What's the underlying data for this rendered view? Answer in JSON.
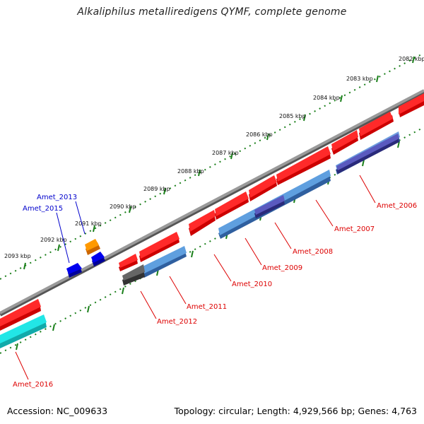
{
  "title": "Alkaliphilus metalliredigens QYMF, complete genome",
  "footer": {
    "accession": "Accession: NC_009633",
    "topology": "Topology: circular; Length: 4,929,566 bp; Genes: 4,763"
  },
  "colors": {
    "backbone": "#8a8a8a",
    "ruler_dots": "#1a7f1a",
    "red_feature": "#ee1111",
    "blue_feature": "#3f7fbf",
    "navy_feature": "#3b3b8f",
    "gray_feature": "#555555",
    "cyan_feature": "#22e6e6",
    "orange_feature": "#ff9900",
    "dark_blue_feature": "#0000dd",
    "label_red": "#dd0000",
    "label_blue": "#0000cc"
  },
  "scale_labels": [
    "2082 kbp",
    "2083 kbp",
    "2084 kbp",
    "2085 kbp",
    "2086 kbp",
    "2087 kbp",
    "2088 kbp",
    "2089 kbp",
    "2090 kbp",
    "2091 kbp",
    "2092 kbp",
    "2093 kbp"
  ],
  "gene_labels_red": [
    "Amet_2006",
    "Amet_2007",
    "Amet_2008",
    "Amet_2009",
    "Amet_2010",
    "Amet_2011",
    "Amet_2012",
    "Amet_2016"
  ],
  "gene_labels_blue": [
    "Amet_2013",
    "Amet_2015"
  ]
}
